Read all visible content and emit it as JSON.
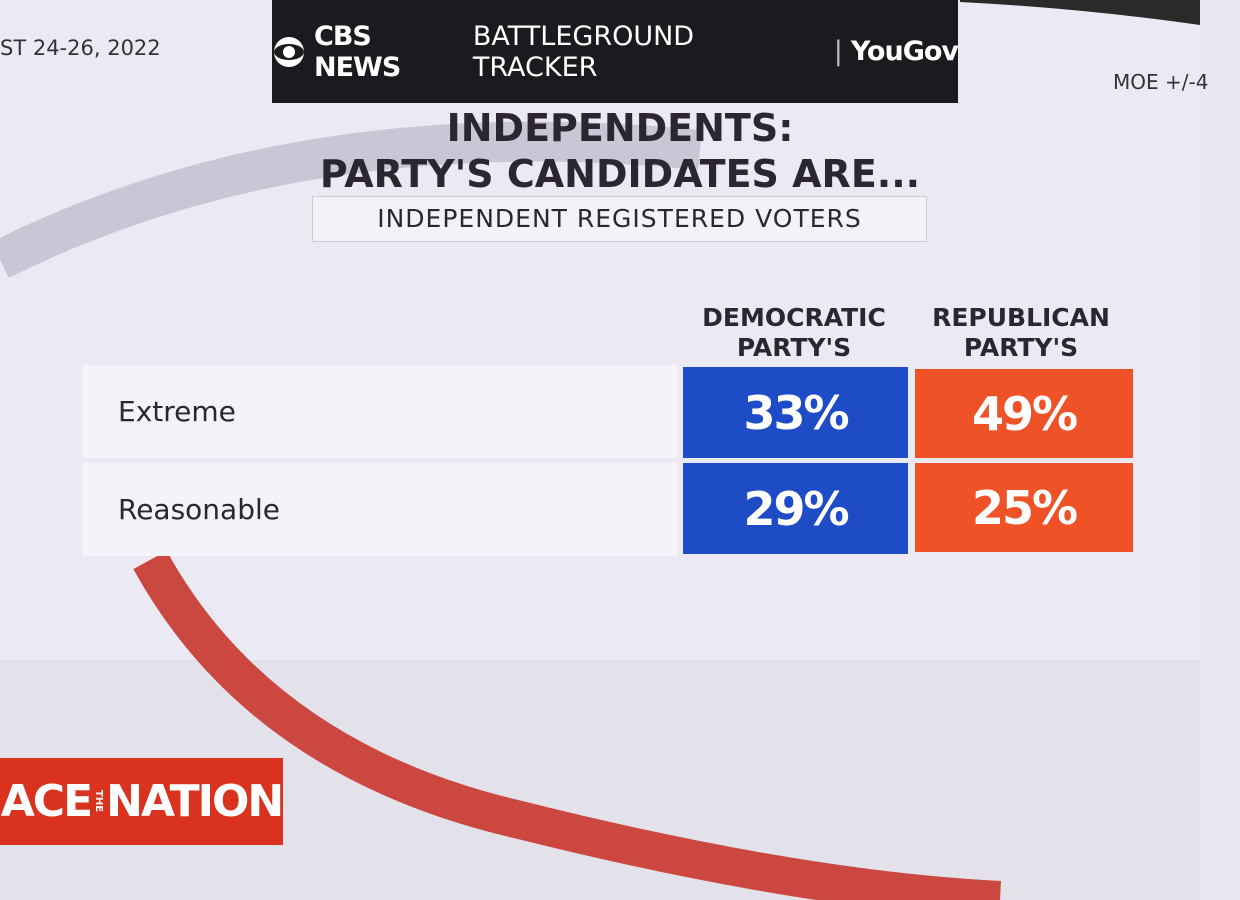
{
  "header": {
    "date": "ST 24-26, 2022",
    "brand": "CBS NEWS",
    "tracker": "BATTLEGROUND TRACKER",
    "partner": "YouGov",
    "moe": "MOE +/-4"
  },
  "title": {
    "line1": "INDEPENDENTS:",
    "line2": "PARTY'S CANDIDATES ARE..."
  },
  "subtitle": "INDEPENDENT REGISTERED VOTERS",
  "table": {
    "columns": [
      "DEMOCRATIC PARTY'S",
      "REPUBLICAN PARTY'S"
    ],
    "rows": [
      [
        "Extreme",
        "33%",
        "49%"
      ],
      [
        "Reasonable",
        "29%",
        "25%"
      ]
    ]
  },
  "logo": {
    "left": "ACE",
    "middle": "THE",
    "right": "NATION"
  }
}
